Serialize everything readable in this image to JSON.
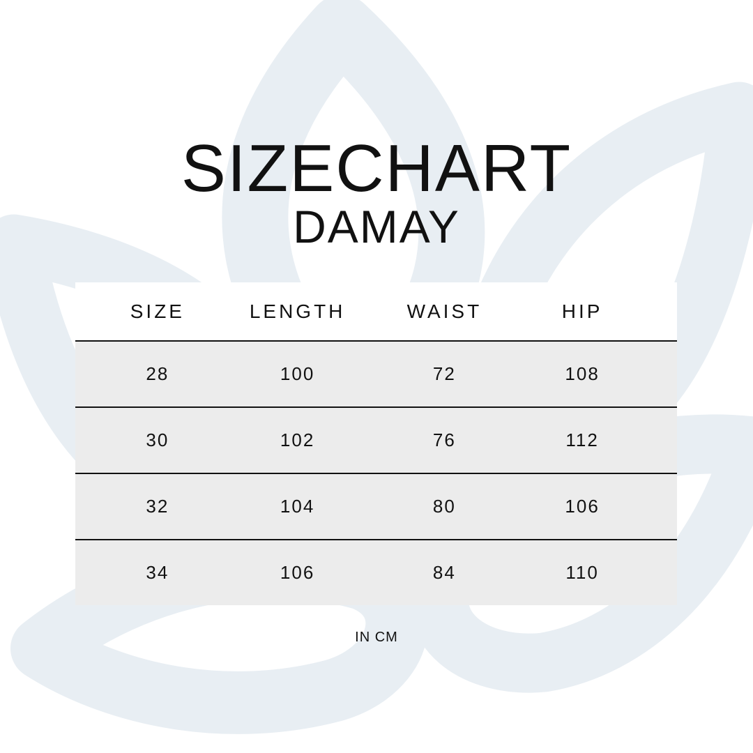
{
  "title": "SIZECHART",
  "subtitle": "DAMAY",
  "columns": [
    "SIZE",
    "LENGTH",
    "WAIST",
    "HIP"
  ],
  "rows": [
    [
      "28",
      "100",
      "72",
      "108"
    ],
    [
      "30",
      "102",
      "76",
      "112"
    ],
    [
      "32",
      "104",
      "80",
      "106"
    ],
    [
      "34",
      "106",
      "84",
      "110"
    ]
  ],
  "unit": "IN CM",
  "colors": {
    "background_motif": "#e8eef3",
    "row_fill": "#ececec",
    "text": "#111111"
  }
}
